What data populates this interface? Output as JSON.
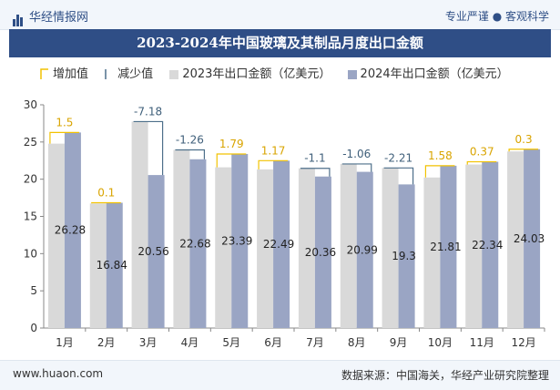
{
  "header": {
    "brand_name": "华经情报网",
    "slogan": "专业严谨 ● 客观科学"
  },
  "title": "2023-2024年中国玻璃及其制品月度出口金额",
  "legend": {
    "increase": "增加值",
    "decrease": "减少值",
    "series_2023": "2023年出口金额（亿美元）",
    "series_2024": "2024年出口金额（亿美元）"
  },
  "footer": {
    "site": "www.huaon.com",
    "source": "数据来源：中国海关，华经产业研究院整理"
  },
  "colors": {
    "title_bg": "#2f4e86",
    "series_2023": "#d9d9d9",
    "series_2024": "#9aa5c4",
    "increase": "#f2c200",
    "decrease": "#4d6f8a"
  },
  "chart_data": {
    "type": "bar",
    "categories": [
      "1月",
      "2月",
      "3月",
      "4月",
      "5月",
      "6月",
      "7月",
      "8月",
      "9月",
      "10月",
      "11月",
      "12月"
    ],
    "series": [
      {
        "name": "2023年出口金额（亿美元）",
        "values": [
          24.78,
          16.74,
          27.74,
          23.94,
          21.6,
          21.32,
          21.46,
          22.05,
          21.51,
          20.23,
          21.97,
          23.73
        ]
      },
      {
        "name": "2024年出口金额（亿美元）",
        "values": [
          26.28,
          16.84,
          20.56,
          22.68,
          23.39,
          22.49,
          20.36,
          20.99,
          19.3,
          21.81,
          22.34,
          24.03
        ]
      }
    ],
    "changes": [
      "1.5",
      "0.1",
      "-7.18",
      "-1.26",
      "1.79",
      "1.17",
      "-1.1",
      "-1.06",
      "-2.21",
      "1.58",
      "0.37",
      "0.3"
    ],
    "change_values": [
      1.5,
      0.1,
      -7.18,
      -1.26,
      1.79,
      1.17,
      -1.1,
      -1.06,
      -2.21,
      1.58,
      0.37,
      0.3
    ],
    "value_labels_2024": [
      "26.28",
      "16.84",
      "20.56",
      "22.68",
      "23.39",
      "22.49",
      "20.36",
      "20.99",
      "19.3",
      "21.81",
      "22.34",
      "24.03"
    ],
    "ylim": [
      0,
      30
    ],
    "yticks": [
      "0",
      "5",
      "10",
      "15",
      "20",
      "25",
      "30"
    ],
    "xlabel": "",
    "ylabel": "",
    "grid": false,
    "legend_position": "top-left"
  }
}
